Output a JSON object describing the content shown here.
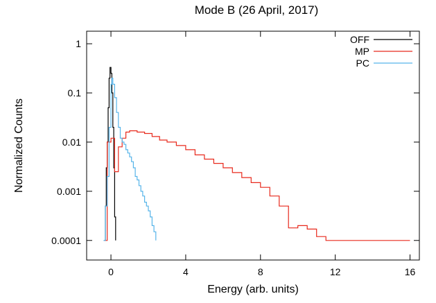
{
  "chart_data": {
    "type": "line",
    "title": "Mode B (26 April, 2017)",
    "xlabel": "Energy (arb. units)",
    "ylabel": "Normalized Counts",
    "xlim": [
      -1.3,
      16.5
    ],
    "ylim": [
      4e-05,
      1.8
    ],
    "yscale": "log",
    "xticks": [
      0,
      4,
      8,
      12,
      16
    ],
    "xtick_labels": [
      "0",
      "4",
      "8",
      "12",
      "16"
    ],
    "yticks": [
      1,
      0.1,
      0.01,
      0.001,
      0.0001
    ],
    "ytick_labels": [
      "1",
      "0.1",
      "0.01",
      "0.001",
      "0.0001"
    ],
    "legend_position": "top-right",
    "grid": false,
    "series": [
      {
        "name": "OFF",
        "color": "#000000",
        "style": "step",
        "x": [
          -0.35,
          -0.3,
          -0.25,
          -0.2,
          -0.15,
          -0.1,
          -0.05,
          0.0,
          0.05,
          0.1,
          0.15,
          0.2,
          0.25
        ],
        "y": [
          0.0001,
          0.0005,
          0.003,
          0.01,
          0.05,
          0.2,
          0.33,
          0.25,
          0.1,
          0.02,
          0.003,
          0.0003,
          0.0001
        ]
      },
      {
        "name": "MP",
        "color": "#e8291c",
        "style": "step",
        "x": [
          -0.35,
          -0.2,
          0.0,
          0.2,
          0.4,
          0.6,
          0.8,
          1.0,
          1.4,
          1.8,
          2.2,
          2.6,
          3.0,
          3.5,
          4.0,
          4.5,
          5.0,
          5.5,
          6.0,
          6.5,
          7.0,
          7.5,
          8.0,
          8.5,
          9.0,
          9.5,
          10.0,
          10.5,
          11.0,
          11.5,
          12.0,
          12.5,
          13.0,
          13.5,
          14.0,
          15.0,
          16.0
        ],
        "y": [
          0.0001,
          0.01,
          0.012,
          0.0025,
          0.008,
          0.012,
          0.016,
          0.017,
          0.016,
          0.015,
          0.013,
          0.011,
          0.01,
          0.0085,
          0.007,
          0.0055,
          0.0045,
          0.0037,
          0.003,
          0.0024,
          0.0019,
          0.0015,
          0.0012,
          0.0008,
          0.0005,
          0.00018,
          0.0002,
          0.00017,
          0.00012,
          0.0001,
          0.0001,
          0.0001,
          0.0001,
          0.0001,
          0.0001,
          0.0001,
          0.0001
        ]
      },
      {
        "name": "PC",
        "color": "#56b4e9",
        "style": "step",
        "x": [
          -0.4,
          -0.3,
          -0.2,
          -0.1,
          0.0,
          0.05,
          0.1,
          0.2,
          0.3,
          0.4,
          0.5,
          0.6,
          0.7,
          0.8,
          0.9,
          1.0,
          1.1,
          1.2,
          1.3,
          1.4,
          1.5,
          1.6,
          1.7,
          1.8,
          1.9,
          2.0,
          2.1,
          2.2,
          2.3,
          2.4
        ],
        "y": [
          0.0001,
          0.0005,
          0.002,
          0.02,
          0.15,
          0.2,
          0.15,
          0.08,
          0.04,
          0.02,
          0.012,
          0.01,
          0.009,
          0.007,
          0.006,
          0.005,
          0.004,
          0.003,
          0.002,
          0.0017,
          0.0013,
          0.001,
          0.0008,
          0.0006,
          0.0005,
          0.0004,
          0.0003,
          0.0002,
          0.00015,
          0.0001
        ]
      }
    ]
  }
}
